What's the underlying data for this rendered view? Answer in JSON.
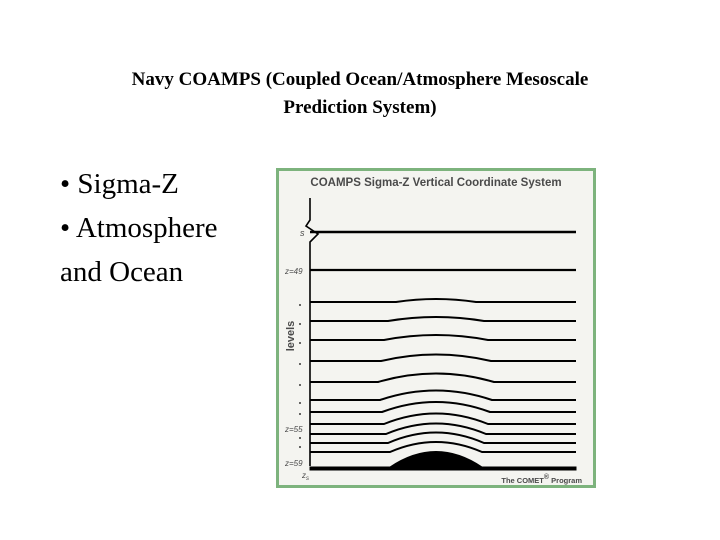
{
  "slide": {
    "title_line1": "Navy COAMPS (Coupled Ocean/Atmosphere Mesoscale",
    "title_line2": "Prediction System)",
    "bullets": [
      {
        "marker": "•",
        "text": "Sigma-Z"
      },
      {
        "marker": "•",
        "text": "Atmosphere"
      }
    ],
    "continuation": "and Ocean"
  },
  "diagram": {
    "title": "COAMPS Sigma-Z Vertical Coordinate System",
    "axis_label": "levels",
    "top_label": "s",
    "level_labels": [
      "z=49",
      "z=55",
      "z=59"
    ],
    "bottom_label_main": "z",
    "bottom_label_sub": "s",
    "credit": "The COMET",
    "credit_mark": "®",
    "credit_suffix": " Program",
    "colors": {
      "border": "#7db37d",
      "background": "#f4f4f0",
      "lines": "#000000",
      "text": "#4a4a4a"
    }
  }
}
